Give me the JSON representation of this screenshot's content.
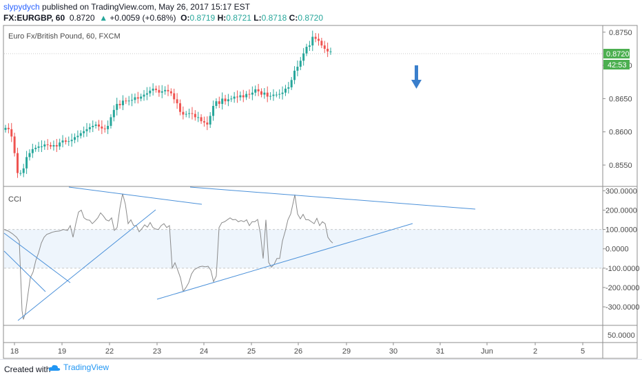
{
  "header": {
    "author": "slypydych",
    "published_text": " published on TradingView.com, May 26, 2017 15:17 EST",
    "symbol": "FX:EURGBP, 60",
    "last_price": "0.8720",
    "change": "+0.0059 (+0.68%)",
    "change_arrow": "▲",
    "open_label": "O:",
    "open": "0.8719",
    "high_label": "H:",
    "high": "0.8721",
    "low_label": "L:",
    "low": "0.8718",
    "close_label": "C:",
    "close": "0.8720"
  },
  "chart_data": {
    "type": "candlestick",
    "title": "Euro Fx/British Pound, 60, FXCM",
    "price_axis_ticks": [
      "0.8750",
      "0.8700",
      "0.8650",
      "0.8600",
      "0.8550"
    ],
    "price_tick_values": [
      0.875,
      0.87,
      0.865,
      0.86,
      0.855
    ],
    "price_range": [
      0.8521,
      0.8757
    ],
    "current_price_label": "0.8720",
    "countdown_label": "42:53",
    "x_axis_ticks": [
      "18",
      "19",
      "22",
      "23",
      "24",
      "25",
      "26",
      "29",
      "30",
      "31",
      "Jun",
      "2",
      "5"
    ],
    "closes": [
      0.8606,
      0.8604,
      0.8593,
      0.8568,
      0.8538,
      0.8538,
      0.8545,
      0.8562,
      0.8568,
      0.8574,
      0.8576,
      0.8578,
      0.8578,
      0.8581,
      0.858,
      0.8578,
      0.858,
      0.8578,
      0.8584,
      0.8587,
      0.8585,
      0.8586,
      0.8588,
      0.8592,
      0.8594,
      0.8598,
      0.8601,
      0.8604,
      0.8607,
      0.8609,
      0.8611,
      0.8608,
      0.8605,
      0.8604,
      0.8609,
      0.8622,
      0.8633,
      0.8642,
      0.864,
      0.8647,
      0.8646,
      0.8647,
      0.8648,
      0.8652,
      0.865,
      0.8653,
      0.8656,
      0.8658,
      0.8662,
      0.8665,
      0.8663,
      0.8659,
      0.8661,
      0.8663,
      0.8661,
      0.8658,
      0.8649,
      0.8643,
      0.863,
      0.8626,
      0.8627,
      0.8628,
      0.8627,
      0.8622,
      0.8622,
      0.8616,
      0.8614,
      0.8611,
      0.8624,
      0.8639,
      0.8646,
      0.8642,
      0.865,
      0.8646,
      0.8649,
      0.865,
      0.8653,
      0.8652,
      0.8655,
      0.8652,
      0.8657,
      0.8656,
      0.8659,
      0.8664,
      0.8661,
      0.8656,
      0.8659,
      0.8653,
      0.8654,
      0.8656,
      0.8656,
      0.8657,
      0.8659,
      0.8665,
      0.8667,
      0.8678,
      0.8692,
      0.8698,
      0.8707,
      0.8718,
      0.8728,
      0.873,
      0.8743,
      0.874,
      0.8737,
      0.873,
      0.8725,
      0.8721,
      0.8721
    ],
    "cci_label": "CCI",
    "cci_axis_ticks": [
      "300.0000",
      "200.0000",
      "100.0000",
      "0.0000",
      "-100.0000",
      "-200.0000",
      "-300.0000"
    ],
    "cci_tick_values": [
      300,
      200,
      100,
      0,
      -100,
      -200,
      -300
    ],
    "cci_range": [
      -385,
      312
    ],
    "cci_band": [
      100,
      -100
    ],
    "cci": [
      [
        0,
        100
      ],
      [
        6,
        92
      ],
      [
        12,
        78
      ],
      [
        18,
        60
      ],
      [
        22,
        40
      ],
      [
        26,
        -320
      ],
      [
        28,
        -365
      ],
      [
        31,
        -330
      ],
      [
        34,
        -250
      ],
      [
        38,
        -150
      ],
      [
        42,
        -120
      ],
      [
        46,
        -60
      ],
      [
        50,
        -20
      ],
      [
        54,
        30
      ],
      [
        58,
        60
      ],
      [
        62,
        75
      ],
      [
        66,
        80
      ],
      [
        70,
        86
      ],
      [
        75,
        90
      ],
      [
        80,
        92
      ],
      [
        86,
        100
      ],
      [
        92,
        95
      ],
      [
        96,
        120
      ],
      [
        100,
        60
      ],
      [
        104,
        130
      ],
      [
        108,
        190
      ],
      [
        112,
        200
      ],
      [
        116,
        160
      ],
      [
        120,
        150
      ],
      [
        124,
        148
      ],
      [
        128,
        130
      ],
      [
        132,
        144
      ],
      [
        136,
        160
      ],
      [
        140,
        186
      ],
      [
        144,
        170
      ],
      [
        148,
        150
      ],
      [
        152,
        144
      ],
      [
        156,
        160
      ],
      [
        160,
        95
      ],
      [
        164,
        110
      ],
      [
        168,
        210
      ],
      [
        172,
        285
      ],
      [
        176,
        230
      ],
      [
        180,
        130
      ],
      [
        184,
        150
      ],
      [
        188,
        120
      ],
      [
        192,
        120
      ],
      [
        196,
        88
      ],
      [
        200,
        104
      ],
      [
        204,
        124
      ],
      [
        208,
        112
      ],
      [
        212,
        136
      ],
      [
        216,
        110
      ],
      [
        220,
        102
      ],
      [
        224,
        100
      ],
      [
        228,
        120
      ],
      [
        232,
        130
      ],
      [
        236,
        110
      ],
      [
        240,
        120
      ],
      [
        244,
        -100
      ],
      [
        248,
        -72
      ],
      [
        252,
        -110
      ],
      [
        256,
        -150
      ],
      [
        260,
        -220
      ],
      [
        264,
        -200
      ],
      [
        268,
        -175
      ],
      [
        272,
        -130
      ],
      [
        276,
        -108
      ],
      [
        280,
        -100
      ],
      [
        284,
        -92
      ],
      [
        288,
        -90
      ],
      [
        292,
        -93
      ],
      [
        296,
        -90
      ],
      [
        300,
        -110
      ],
      [
        304,
        -170
      ],
      [
        308,
        -140
      ],
      [
        312,
        110
      ],
      [
        316,
        135
      ],
      [
        320,
        140
      ],
      [
        324,
        150
      ],
      [
        328,
        160
      ],
      [
        332,
        150
      ],
      [
        336,
        152
      ],
      [
        340,
        140
      ],
      [
        344,
        146
      ],
      [
        348,
        140
      ],
      [
        352,
        150
      ],
      [
        356,
        120
      ],
      [
        360,
        140
      ],
      [
        364,
        140
      ],
      [
        368,
        152
      ],
      [
        372,
        80
      ],
      [
        376,
        -50
      ],
      [
        380,
        150
      ],
      [
        384,
        -70
      ],
      [
        388,
        -95
      ],
      [
        392,
        -80
      ],
      [
        396,
        -50
      ],
      [
        400,
        -50
      ],
      [
        404,
        40
      ],
      [
        408,
        90
      ],
      [
        412,
        150
      ],
      [
        416,
        180
      ],
      [
        420,
        245
      ],
      [
        422,
        280
      ],
      [
        426,
        180
      ],
      [
        430,
        155
      ],
      [
        434,
        178
      ],
      [
        438,
        150
      ],
      [
        442,
        150
      ],
      [
        446,
        140
      ],
      [
        450,
        130
      ],
      [
        454,
        158
      ],
      [
        458,
        120
      ],
      [
        462,
        140
      ],
      [
        466,
        130
      ],
      [
        470,
        60
      ],
      [
        474,
        40
      ],
      [
        477,
        30
      ]
    ],
    "trendlines": [
      [
        [
          100,
          272
        ],
        [
          293,
          297
        ]
      ],
      [
        [
          276,
          272
        ],
        [
          690,
          304
        ]
      ],
      [
        [
          26,
          466
        ],
        [
          226,
          305
        ]
      ],
      [
        [
          228,
          435
        ],
        [
          599,
          325
        ]
      ],
      [
        [
          6,
          339
        ],
        [
          102,
          411
        ]
      ],
      [
        [
          6,
          365
        ],
        [
          66,
          424
        ]
      ]
    ],
    "bottom_axis_tick": "50.0000",
    "colors": {
      "up": "#26a69a",
      "down": "#ef5350",
      "trend": "#4a90d9",
      "cci": "#8a8a8a",
      "band": "#eef5fc",
      "arrow": "#3a7fcc",
      "price_tag": "#4caf50"
    }
  },
  "footer": {
    "created_with": "Created with",
    "tradingview": "TradingView"
  }
}
